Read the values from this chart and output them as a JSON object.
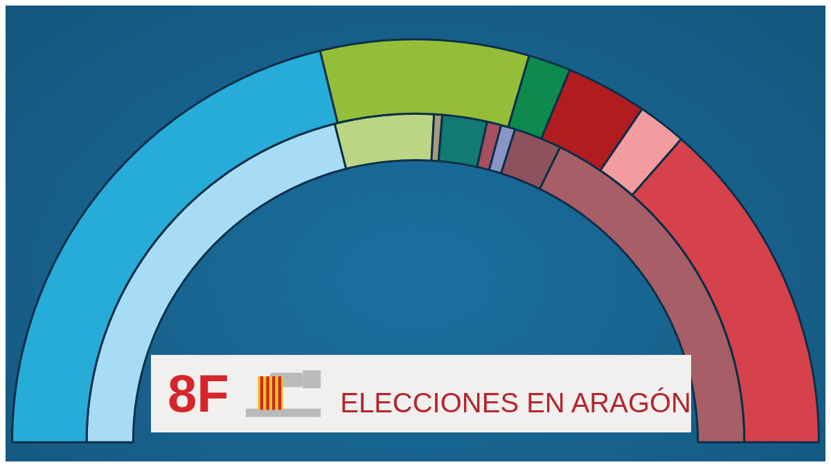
{
  "chart_data": {
    "type": "donut",
    "title": "8F",
    "subtitle": "ELECCIONES EN ARAGÓN",
    "legend": false,
    "categories": [
      null,
      null,
      null,
      null,
      null,
      null,
      null,
      null
    ],
    "series": [
      {
        "values": [
          42.4,
          16.7,
          3.4,
          6.5,
          3.9,
          27.1,
          null,
          null
        ],
        "colors": [
          "#27acd9",
          "#95be38",
          "#0e8a4f",
          "#b01c20",
          "#f29ca0",
          "#d6424b",
          null,
          null
        ]
      },
      {
        "values": [
          42.1,
          9.7,
          0.8,
          4.4,
          1.4,
          1.4,
          4.7,
          35.5
        ],
        "colors": [
          "#a6dcf6",
          "#bcd584",
          "#a89a80",
          "#127a72",
          "#a5505e",
          "#8a94c6",
          "#8e525c",
          "#a75e66"
        ]
      }
    ]
  }
}
